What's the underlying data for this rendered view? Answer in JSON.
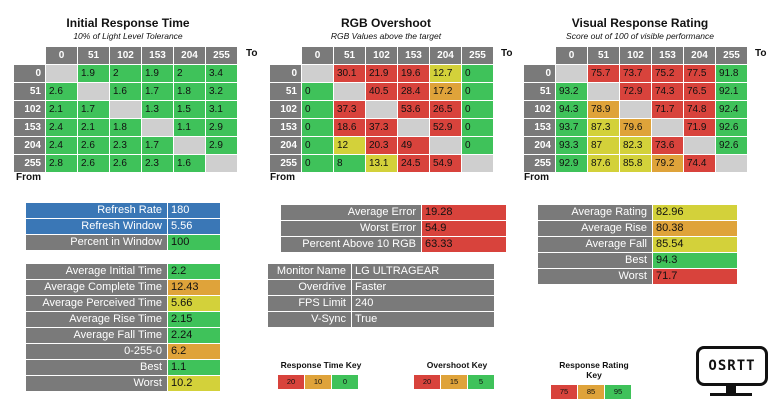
{
  "colors": {
    "green": "#3fc25a",
    "yellow": "#d3d13a",
    "orange": "#dfa33a",
    "red": "#d8433c",
    "gray": "#7a7a7a",
    "blue": "#3a77b6",
    "na": "#cfcfcf"
  },
  "axis": {
    "to": "To",
    "from": "From"
  },
  "chart_data": [
    {
      "type": "heatmap",
      "title": "Initial Response Time",
      "subtitle": "10% of Light Level Tolerance",
      "columns": [
        "0",
        "51",
        "102",
        "153",
        "204",
        "255"
      ],
      "rows": [
        "0",
        "51",
        "102",
        "153",
        "204",
        "255"
      ],
      "cells": [
        [
          "",
          "1.9",
          "2",
          "1.9",
          "2",
          "3.4"
        ],
        [
          "2.6",
          "",
          "1.6",
          "1.7",
          "1.8",
          "3.2"
        ],
        [
          "2.1",
          "1.7",
          "",
          "1.3",
          "1.5",
          "3.1"
        ],
        [
          "2.4",
          "2.1",
          "1.8",
          "",
          "1.1",
          "2.9"
        ],
        [
          "2.4",
          "2.6",
          "2.3",
          "1.7",
          "",
          "2.9"
        ],
        [
          "2.8",
          "2.6",
          "2.6",
          "2.3",
          "1.6",
          ""
        ]
      ],
      "colors": [
        [
          "na",
          "green",
          "green",
          "green",
          "green",
          "green"
        ],
        [
          "green",
          "na",
          "green",
          "green",
          "green",
          "green"
        ],
        [
          "green",
          "green",
          "na",
          "green",
          "green",
          "green"
        ],
        [
          "green",
          "green",
          "green",
          "na",
          "green",
          "green"
        ],
        [
          "green",
          "green",
          "green",
          "green",
          "na",
          "green"
        ],
        [
          "green",
          "green",
          "green",
          "green",
          "green",
          "na"
        ]
      ]
    },
    {
      "type": "heatmap",
      "title": "RGB Overshoot",
      "subtitle": "RGB Values above the target",
      "columns": [
        "0",
        "51",
        "102",
        "153",
        "204",
        "255"
      ],
      "rows": [
        "0",
        "51",
        "102",
        "153",
        "204",
        "255"
      ],
      "cells": [
        [
          "",
          "30.1",
          "21.9",
          "19.6",
          "12.7",
          "0"
        ],
        [
          "0",
          "",
          "40.5",
          "28.4",
          "17.2",
          "0"
        ],
        [
          "0",
          "37.3",
          "",
          "53.6",
          "26.5",
          "0"
        ],
        [
          "0",
          "18.6",
          "37.3",
          "",
          "52.9",
          "0"
        ],
        [
          "0",
          "12",
          "20.3",
          "49",
          "",
          "0"
        ],
        [
          "0",
          "8",
          "13.1",
          "24.5",
          "54.9",
          ""
        ]
      ],
      "colors": [
        [
          "na",
          "red",
          "red",
          "red",
          "yellow",
          "green"
        ],
        [
          "green",
          "na",
          "red",
          "red",
          "orange",
          "green"
        ],
        [
          "green",
          "red",
          "na",
          "red",
          "red",
          "green"
        ],
        [
          "green",
          "red",
          "red",
          "na",
          "red",
          "green"
        ],
        [
          "green",
          "yellow",
          "red",
          "red",
          "na",
          "green"
        ],
        [
          "green",
          "green",
          "yellow",
          "red",
          "red",
          "na"
        ]
      ]
    },
    {
      "type": "heatmap",
      "title": "Visual Response Rating",
      "subtitle": "Score out of 100 of visible performance",
      "columns": [
        "0",
        "51",
        "102",
        "153",
        "204",
        "255"
      ],
      "rows": [
        "0",
        "51",
        "102",
        "153",
        "204",
        "255"
      ],
      "cells": [
        [
          "",
          "75.7",
          "73.7",
          "75.2",
          "77.5",
          "91.8"
        ],
        [
          "93.2",
          "",
          "72.9",
          "74.3",
          "76.5",
          "92.1"
        ],
        [
          "94.3",
          "78.9",
          "",
          "71.7",
          "74.8",
          "92.4"
        ],
        [
          "93.7",
          "87.3",
          "79.6",
          "",
          "71.9",
          "92.6"
        ],
        [
          "93.3",
          "87",
          "82.3",
          "73.6",
          "",
          "92.6"
        ],
        [
          "92.9",
          "87.6",
          "85.8",
          "79.2",
          "74.4",
          ""
        ]
      ],
      "colors": [
        [
          "na",
          "red",
          "red",
          "red",
          "red",
          "green"
        ],
        [
          "green",
          "na",
          "red",
          "red",
          "red",
          "green"
        ],
        [
          "green",
          "orange",
          "na",
          "red",
          "red",
          "green"
        ],
        [
          "green",
          "yellow",
          "orange",
          "na",
          "red",
          "green"
        ],
        [
          "green",
          "yellow",
          "yellow",
          "red",
          "na",
          "green"
        ],
        [
          "green",
          "yellow",
          "yellow",
          "orange",
          "red",
          "na"
        ]
      ]
    }
  ],
  "refresh": [
    {
      "label": "Refresh Rate",
      "value": "180",
      "color": "blue"
    },
    {
      "label": "Refresh Window",
      "value": "5.56",
      "color": "blue"
    },
    {
      "label": "Percent in Window",
      "value": "100",
      "color": "green"
    }
  ],
  "response_stats": [
    {
      "label": "Average Initial Time",
      "value": "2.2",
      "color": "green"
    },
    {
      "label": "Average Complete Time",
      "value": "12.43",
      "color": "orange"
    },
    {
      "label": "Average Perceived Time",
      "value": "5.66",
      "color": "yellow"
    },
    {
      "label": "Average Rise Time",
      "value": "2.15",
      "color": "green"
    },
    {
      "label": "Average Fall Time",
      "value": "2.24",
      "color": "green"
    },
    {
      "label": "0-255-0",
      "value": "6.2",
      "color": "orange"
    },
    {
      "label": "Best",
      "value": "1.1",
      "color": "green"
    },
    {
      "label": "Worst",
      "value": "10.2",
      "color": "yellow"
    }
  ],
  "error_stats": [
    {
      "label": "Average Error",
      "value": "19.28",
      "color": "red"
    },
    {
      "label": "Worst Error",
      "value": "54.9",
      "color": "red"
    },
    {
      "label": "Percent Above 10 RGB",
      "value": "63.33",
      "color": "red"
    }
  ],
  "monitor_info": [
    {
      "label": "Monitor Name",
      "value": "LG ULTRAGEAR"
    },
    {
      "label": "Overdrive",
      "value": "Faster"
    },
    {
      "label": "FPS Limit",
      "value": "240"
    },
    {
      "label": "V-Sync",
      "value": "True"
    }
  ],
  "rating_stats": [
    {
      "label": "Average Rating",
      "value": "82.96",
      "color": "yellow"
    },
    {
      "label": "Average Rise",
      "value": "80.38",
      "color": "orange"
    },
    {
      "label": "Average Fall",
      "value": "85.54",
      "color": "yellow"
    },
    {
      "label": "Best",
      "value": "94.3",
      "color": "green"
    },
    {
      "label": "Worst",
      "value": "71.7",
      "color": "red"
    }
  ],
  "keys": [
    {
      "title": "Response Time Key",
      "items": [
        {
          "text": "20",
          "color": "red"
        },
        {
          "text": "10",
          "color": "orange"
        },
        {
          "text": "0",
          "color": "green"
        }
      ]
    },
    {
      "title": "Overshoot Key",
      "items": [
        {
          "text": "20",
          "color": "red"
        },
        {
          "text": "15",
          "color": "orange"
        },
        {
          "text": "5",
          "color": "green"
        }
      ]
    },
    {
      "title": "Response Rating Key",
      "items": [
        {
          "text": "75",
          "color": "red"
        },
        {
          "text": "85",
          "color": "orange"
        },
        {
          "text": "95",
          "color": "green"
        }
      ]
    }
  ],
  "logo": {
    "text": "OSRTT"
  }
}
